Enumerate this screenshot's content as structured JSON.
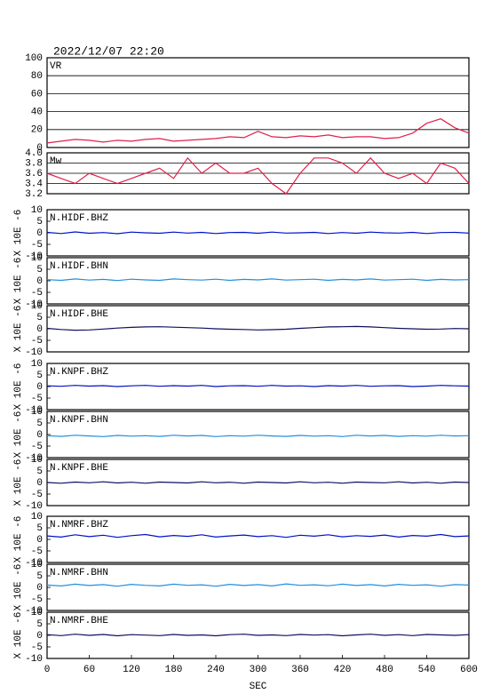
{
  "chart_data": [
    {
      "type": "line",
      "title": "2022/12/07 22:20",
      "label": "VR",
      "color": "#e0204a",
      "grid": true,
      "x": [
        0,
        20,
        40,
        60,
        80,
        100,
        120,
        140,
        160,
        180,
        200,
        220,
        240,
        260,
        280,
        300,
        320,
        340,
        360,
        380,
        400,
        420,
        440,
        460,
        480,
        500,
        520,
        540,
        560,
        580,
        600
      ],
      "values": [
        5,
        7,
        9,
        8,
        6,
        8,
        7,
        9,
        10,
        7,
        8,
        9,
        10,
        12,
        11,
        18,
        12,
        11,
        13,
        12,
        14,
        11,
        12,
        12,
        10,
        11,
        16,
        27,
        32,
        22,
        16
      ],
      "xlim": [
        0,
        600
      ],
      "ylim": [
        0,
        100
      ],
      "yticks": [
        0,
        20,
        40,
        60,
        80,
        100
      ]
    },
    {
      "type": "line",
      "label": "Mw",
      "color": "#e0204a",
      "grid": true,
      "x": [
        0,
        20,
        40,
        60,
        80,
        100,
        120,
        140,
        160,
        180,
        200,
        220,
        240,
        260,
        280,
        300,
        320,
        340,
        360,
        380,
        400,
        420,
        440,
        460,
        480,
        500,
        520,
        540,
        560,
        580,
        600
      ],
      "values": [
        3.6,
        3.5,
        3.4,
        3.6,
        3.5,
        3.4,
        3.5,
        3.6,
        3.7,
        3.5,
        3.9,
        3.6,
        3.8,
        3.6,
        3.6,
        3.7,
        3.4,
        3.2,
        3.6,
        3.9,
        3.9,
        3.8,
        3.6,
        3.9,
        3.6,
        3.5,
        3.6,
        3.4,
        3.8,
        3.7,
        3.4
      ],
      "xlim": [
        0,
        600
      ],
      "ylim": [
        3.2,
        4.0
      ],
      "yticks": [
        3.2,
        3.4,
        3.6,
        3.8,
        {
          "value": 4,
          "label": "4.0"
        }
      ]
    },
    {
      "type": "line",
      "label": "N.HIDF.BHZ",
      "ylabel": "X 10E -6",
      "color": "#0010c8",
      "grid": false,
      "x": [
        0,
        20,
        40,
        60,
        80,
        100,
        120,
        140,
        160,
        180,
        200,
        220,
        240,
        260,
        280,
        300,
        320,
        340,
        360,
        380,
        400,
        420,
        440,
        460,
        480,
        500,
        520,
        540,
        560,
        580,
        600
      ],
      "values": [
        0.2,
        -0.3,
        0.4,
        -0.2,
        0.1,
        -0.4,
        0.3,
        0,
        -0.2,
        0.3,
        -0.1,
        0.2,
        -0.3,
        0.1,
        0.2,
        -0.2,
        0.3,
        -0.1,
        0,
        0.2,
        -0.3,
        0.1,
        -0.2,
        0.3,
        0,
        -0.1,
        0.2,
        -0.3,
        0.1,
        0.2,
        -0.1
      ],
      "xlim": [
        0,
        600
      ],
      "ylim": [
        -10,
        10
      ],
      "yticks": [
        -10,
        -5,
        0,
        5,
        10
      ]
    },
    {
      "type": "line",
      "label": "N.HIDF.BHN",
      "ylabel": "X 10E -6",
      "color": "#2090e0",
      "grid": false,
      "x": [
        0,
        20,
        40,
        60,
        80,
        100,
        120,
        140,
        160,
        180,
        200,
        220,
        240,
        260,
        280,
        300,
        320,
        340,
        360,
        380,
        400,
        420,
        440,
        460,
        480,
        500,
        520,
        540,
        560,
        580,
        600
      ],
      "values": [
        0.5,
        0.2,
        0.8,
        0.3,
        0.6,
        0.1,
        0.7,
        0.4,
        0.2,
        0.8,
        0.5,
        0.3,
        0.7,
        0.2,
        0.6,
        0.4,
        0.8,
        0.3,
        0.5,
        0.7,
        0.2,
        0.6,
        0.4,
        0.8,
        0.3,
        0.5,
        0.7,
        0.2,
        0.6,
        0.4,
        0.5
      ],
      "xlim": [
        0,
        600
      ],
      "ylim": [
        -10,
        10
      ],
      "yticks": [
        -10,
        -5,
        0,
        5,
        10
      ]
    },
    {
      "type": "line",
      "label": "N.HIDF.BHE",
      "ylabel": "X 10E -6",
      "color": "#101060",
      "grid": false,
      "x": [
        0,
        20,
        40,
        60,
        80,
        100,
        120,
        140,
        160,
        180,
        200,
        220,
        240,
        260,
        280,
        300,
        320,
        340,
        360,
        380,
        400,
        420,
        440,
        460,
        480,
        500,
        520,
        540,
        560,
        580,
        600
      ],
      "values": [
        0.2,
        -0.3,
        -0.6,
        -0.5,
        -0.1,
        0.3,
        0.6,
        0.8,
        0.9,
        0.7,
        0.5,
        0.3,
        0,
        -0.2,
        -0.3,
        -0.5,
        -0.4,
        -0.2,
        0.2,
        0.5,
        0.8,
        0.9,
        1,
        0.8,
        0.5,
        0.2,
        0,
        -0.2,
        -0.1,
        0.1,
        0
      ],
      "xlim": [
        0,
        600
      ],
      "ylim": [
        -10,
        10
      ],
      "yticks": [
        -10,
        -5,
        0,
        5,
        10
      ]
    },
    {
      "type": "line",
      "label": "N.KNPF.BHZ",
      "ylabel": "X 10E -6",
      "color": "#0010c8",
      "grid": false,
      "x": [
        0,
        20,
        40,
        60,
        80,
        100,
        120,
        140,
        160,
        180,
        200,
        220,
        240,
        260,
        280,
        300,
        320,
        340,
        360,
        380,
        400,
        420,
        440,
        460,
        480,
        500,
        520,
        540,
        560,
        580,
        600
      ],
      "values": [
        0.3,
        0.1,
        0.5,
        0.2,
        0.4,
        0,
        0.3,
        0.5,
        0.1,
        0.4,
        0.2,
        0.5,
        0,
        0.3,
        0.4,
        0.1,
        0.5,
        0.2,
        0.3,
        0,
        0.4,
        0.2,
        0.5,
        0.1,
        0.3,
        0.4,
        0,
        0.2,
        0.5,
        0.3,
        0.2
      ],
      "xlim": [
        0,
        600
      ],
      "ylim": [
        -10,
        10
      ],
      "yticks": [
        -10,
        -5,
        0,
        5,
        10
      ]
    },
    {
      "type": "line",
      "label": "N.KNPF.BHN",
      "ylabel": "X 10E -6",
      "color": "#2090e0",
      "grid": false,
      "x": [
        0,
        20,
        40,
        60,
        80,
        100,
        120,
        140,
        160,
        180,
        200,
        220,
        240,
        260,
        280,
        300,
        320,
        340,
        360,
        380,
        400,
        420,
        440,
        460,
        480,
        500,
        520,
        540,
        560,
        580,
        600
      ],
      "values": [
        -0.5,
        -0.8,
        -0.3,
        -0.6,
        -0.9,
        -0.4,
        -0.7,
        -0.5,
        -0.8,
        -0.3,
        -0.6,
        -0.4,
        -0.9,
        -0.5,
        -0.7,
        -0.3,
        -0.6,
        -0.8,
        -0.4,
        -0.7,
        -0.5,
        -0.9,
        -0.3,
        -0.6,
        -0.4,
        -0.8,
        -0.5,
        -0.7,
        -0.3,
        -0.6,
        -0.5
      ],
      "xlim": [
        0,
        600
      ],
      "ylim": [
        -10,
        10
      ],
      "yticks": [
        -10,
        -5,
        0,
        5,
        10
      ]
    },
    {
      "type": "line",
      "label": "N.KNPF.BHE",
      "ylabel": "X 10E -6",
      "color": "#101060",
      "grid": false,
      "x": [
        0,
        20,
        40,
        60,
        80,
        100,
        120,
        140,
        160,
        180,
        200,
        220,
        240,
        260,
        280,
        300,
        320,
        340,
        360,
        380,
        400,
        420,
        440,
        460,
        480,
        500,
        520,
        540,
        560,
        580,
        600
      ],
      "values": [
        0,
        -0.3,
        0.2,
        -0.1,
        0.3,
        -0.2,
        0.1,
        -0.3,
        0.2,
        0,
        -0.2,
        0.3,
        -0.1,
        0.1,
        -0.3,
        0.2,
        0,
        -0.2,
        0.3,
        -0.1,
        0.1,
        -0.3,
        0.2,
        0,
        -0.1,
        0.3,
        -0.2,
        0.1,
        -0.3,
        0.2,
        0
      ],
      "xlim": [
        0,
        600
      ],
      "ylim": [
        -10,
        10
      ],
      "yticks": [
        -10,
        -5,
        0,
        5,
        10
      ]
    },
    {
      "type": "line",
      "label": "N.NMRF.BHZ",
      "ylabel": "X 10E -6",
      "color": "#0010c8",
      "grid": false,
      "x": [
        0,
        20,
        40,
        60,
        80,
        100,
        120,
        140,
        160,
        180,
        200,
        220,
        240,
        260,
        280,
        300,
        320,
        340,
        360,
        380,
        400,
        420,
        440,
        460,
        480,
        500,
        520,
        540,
        560,
        580,
        600
      ],
      "values": [
        1.5,
        1,
        2,
        1.2,
        1.8,
        0.9,
        1.6,
        2.1,
        1.1,
        1.7,
        1.3,
        2,
        1,
        1.5,
        1.9,
        1.2,
        1.6,
        0.9,
        1.8,
        1.4,
        2,
        1.1,
        1.6,
        1.3,
        1.9,
        1,
        1.7,
        1.4,
        2.1,
        1.2,
        1.5
      ],
      "xlim": [
        0,
        600
      ],
      "ylim": [
        -10,
        10
      ],
      "yticks": [
        -10,
        -5,
        0,
        5,
        10
      ]
    },
    {
      "type": "line",
      "label": "N.NMRF.BHN",
      "ylabel": "X 10E -6",
      "color": "#2090e0",
      "grid": false,
      "x": [
        0,
        20,
        40,
        60,
        80,
        100,
        120,
        140,
        160,
        180,
        200,
        220,
        240,
        260,
        280,
        300,
        320,
        340,
        360,
        380,
        400,
        420,
        440,
        460,
        480,
        500,
        520,
        540,
        560,
        580,
        600
      ],
      "values": [
        1,
        0.6,
        1.4,
        0.8,
        1.2,
        0.5,
        1.3,
        0.9,
        0.6,
        1.4,
        0.9,
        1.1,
        0.5,
        1.3,
        0.8,
        1.2,
        0.6,
        1.5,
        0.9,
        1.1,
        0.7,
        1.4,
        0.8,
        1.2,
        0.6,
        1.3,
        0.9,
        1.1,
        0.5,
        1.2,
        1
      ],
      "xlim": [
        0,
        600
      ],
      "ylim": [
        -10,
        10
      ],
      "yticks": [
        -10,
        -5,
        0,
        5,
        10
      ]
    },
    {
      "type": "line",
      "label": "N.NMRF.BHE",
      "ylabel": "X 10E -6",
      "color": "#101060",
      "grid": false,
      "x": [
        0,
        20,
        40,
        60,
        80,
        100,
        120,
        140,
        160,
        180,
        200,
        220,
        240,
        260,
        280,
        300,
        320,
        340,
        360,
        380,
        400,
        420,
        440,
        460,
        480,
        500,
        520,
        540,
        560,
        580,
        600
      ],
      "values": [
        0.3,
        -0.1,
        0.5,
        0,
        0.4,
        -0.2,
        0.3,
        0.1,
        -0.1,
        0.4,
        0,
        0.2,
        -0.2,
        0.3,
        0.5,
        0,
        0.2,
        -0.1,
        0.4,
        0.1,
        0.3,
        -0.2,
        0.2,
        0.5,
        0,
        0.3,
        -0.1,
        0.4,
        0.2,
        0,
        0.3
      ],
      "xlim": [
        0,
        600
      ],
      "ylim": [
        -10,
        10
      ],
      "yticks": [
        -10,
        -5,
        0,
        5,
        10
      ],
      "xlabel": "SEC",
      "xticks": [
        0,
        60,
        120,
        180,
        240,
        300,
        360,
        420,
        480,
        540,
        600
      ]
    }
  ]
}
